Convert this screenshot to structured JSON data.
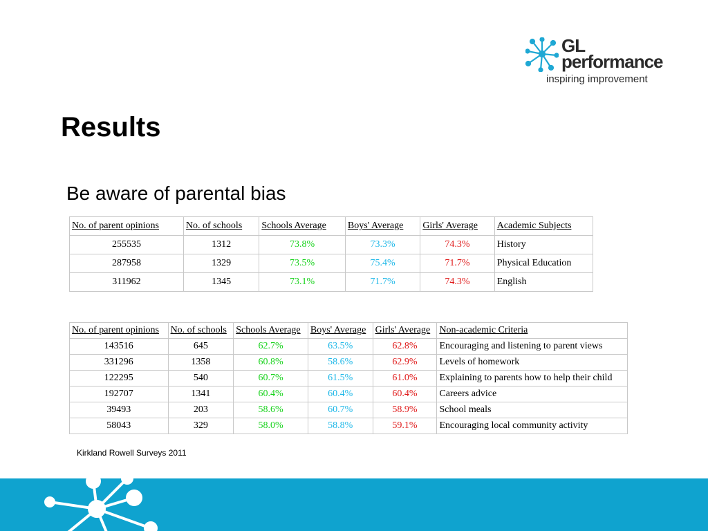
{
  "logo": {
    "line1": "GL",
    "line2": "performance",
    "tagline": "inspiring improvement",
    "icon": "network-star-icon",
    "accent": "#1fa8d4"
  },
  "title": "Results",
  "subtitle": "Be aware of parental bias",
  "table1": {
    "headers": [
      "No. of parent opinions",
      "No. of schools",
      "Schools Average",
      "Boys' Average",
      "Girls' Average",
      "Academic Subjects"
    ],
    "rows": [
      [
        "255535",
        "1312",
        "73.8%",
        "73.3%",
        "74.3%",
        "History"
      ],
      [
        "287958",
        "1329",
        "73.5%",
        "75.4%",
        "71.7%",
        "Physical Education"
      ],
      [
        "311962",
        "1345",
        "73.1%",
        "71.7%",
        "74.3%",
        "English"
      ]
    ]
  },
  "table2": {
    "headers": [
      "No. of parent opinions",
      "No. of schools",
      "Schools Average",
      "Boys' Average",
      "Girls' Average",
      "Non-academic Criteria"
    ],
    "rows": [
      [
        "143516",
        "645",
        "62.7%",
        "63.5%",
        "62.8%",
        "Encouraging and listening to parent views"
      ],
      [
        "331296",
        "1358",
        "60.8%",
        "58.6%",
        "62.9%",
        "Levels of homework"
      ],
      [
        "122295",
        "540",
        "60.7%",
        "61.5%",
        "61.0%",
        "Explaining to parents how to help their child"
      ],
      [
        "192707",
        "1341",
        "60.4%",
        "60.4%",
        "60.4%",
        "Careers advice"
      ],
      [
        "39493",
        "203",
        "58.6%",
        "60.7%",
        "58.9%",
        "School meals"
      ],
      [
        "58043",
        "329",
        "58.0%",
        "58.8%",
        "59.1%",
        "Encouraging local community activity"
      ]
    ]
  },
  "colors": {
    "schools": "#16d21a",
    "boys": "#1fb8e8",
    "girls": "#e01a1a",
    "footer": "#0fa3cf"
  },
  "source": "Kirkland Rowell Surveys 2011"
}
